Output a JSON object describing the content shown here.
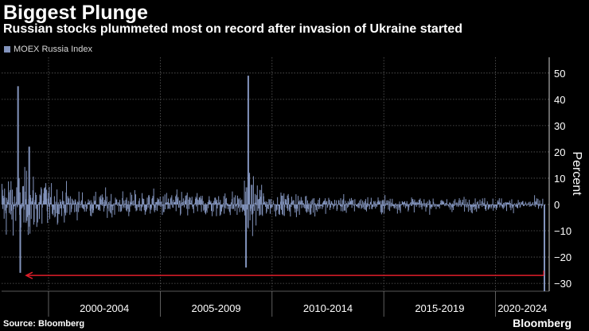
{
  "header": {
    "title": "Biggest Plunge",
    "subtitle": "Russian stocks plummeted most on record after invasion of Ukraine started"
  },
  "legend": {
    "label": "MOEX Russia Index",
    "color": "#8394bd"
  },
  "footer": {
    "source": "Source: Bloomberg",
    "brand": "Bloomberg"
  },
  "chart_data": {
    "type": "bar",
    "title": "Biggest Plunge",
    "subtitle": "Russian stocks plummeted most on record after invasion of Ukraine started",
    "ylabel": "Percent",
    "ylim": [
      -33,
      56
    ],
    "yticks": [
      50,
      40,
      30,
      20,
      10,
      0,
      -10,
      -20,
      -30
    ],
    "x_groups": [
      "2000-2004",
      "2005-2009",
      "2010-2014",
      "2015-2019",
      "2020-2024"
    ],
    "xlim": [
      1997.9,
      2022.4
    ],
    "grid": true,
    "legend_position": "top-left",
    "colors": {
      "series": "#8394bd",
      "grid": "#5a5a5a",
      "arrow": "#e01e2a",
      "background": "#000000"
    },
    "series": [
      {
        "name": "MOEX Russia Index",
        "notable_points": [
          {
            "x": 1998.6,
            "y": 45
          },
          {
            "x": 1998.7,
            "y": -26
          },
          {
            "x": 1999.1,
            "y": 22
          },
          {
            "x": 2008.9,
            "y": 49
          },
          {
            "x": 2008.8,
            "y": -24
          },
          {
            "x": 2022.15,
            "y": -33
          }
        ]
      }
    ],
    "annotation": {
      "type": "arrow",
      "y": -27,
      "x_from": 2022.15,
      "x_to": 1999.0
    }
  }
}
